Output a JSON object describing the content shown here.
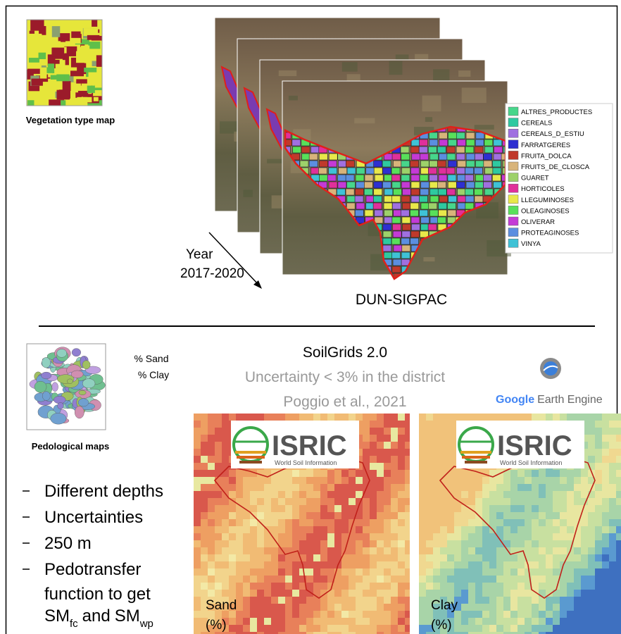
{
  "vegetation_map": {
    "label": "Vegetation type map"
  },
  "dun_sigpac": {
    "title": "DUN-SIGPAC",
    "year_label": "Year",
    "years": "2017-2020",
    "legend": [
      {
        "name": "ALTRES_PRODUCTES",
        "color": "#47d68b"
      },
      {
        "name": "CEREALS",
        "color": "#2ec9a0"
      },
      {
        "name": "CEREALS_D_ESTIU",
        "color": "#a070e0"
      },
      {
        "name": "FARRATGERES",
        "color": "#2e2fd1"
      },
      {
        "name": "FRUITA_DOLCA",
        "color": "#c0392b"
      },
      {
        "name": "FRUITS_DE_CLOSCA",
        "color": "#d8b47a"
      },
      {
        "name": "GUARET",
        "color": "#9dd16a"
      },
      {
        "name": "HORTICOLES",
        "color": "#e0309a"
      },
      {
        "name": "LLEGUMINOSES",
        "color": "#e8e84a"
      },
      {
        "name": "OLEAGINOSES",
        "color": "#58e05a"
      },
      {
        "name": "OLIVERAR",
        "color": "#c43ad6"
      },
      {
        "name": "PROTEAGINOSES",
        "color": "#5b8ee0"
      },
      {
        "name": "VINYA",
        "color": "#3fc2d6"
      }
    ]
  },
  "soilgrids": {
    "title": "SoilGrids 2.0",
    "uncertainty": "Uncertainty < 3% in the district",
    "citation": "Poggio et al., 2021"
  },
  "gee": {
    "google": "Google",
    "earth_engine": "Earth Engine"
  },
  "pedological_map": {
    "label": "Pedological maps",
    "properties": [
      "% Sand",
      "% Clay"
    ]
  },
  "isric": {
    "name": "ISRIC",
    "subtitle": "World Soil Information"
  },
  "bullets": [
    "Different depths",
    "Uncertainties",
    "250 m"
  ],
  "pedotransfer": {
    "line1": "Pedotransfer",
    "line2": "function to get",
    "sm": "SM",
    "fc": "fc",
    "and": "and",
    "wp": "wp"
  },
  "maps": [
    {
      "label": "Sand",
      "unit": "(%)"
    },
    {
      "label": "Clay",
      "unit": "(%)"
    }
  ]
}
